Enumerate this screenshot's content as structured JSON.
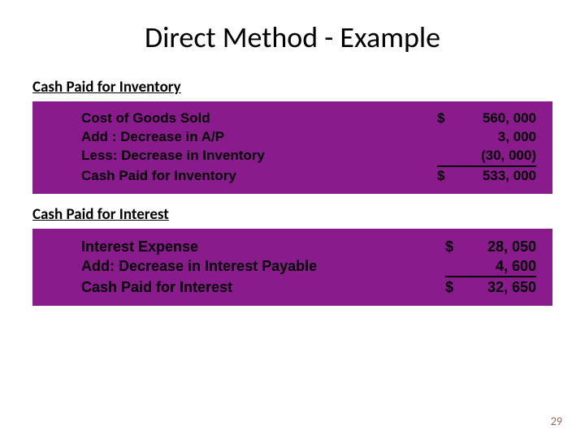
{
  "title": "Direct Method - Example",
  "sections": [
    {
      "label": "Cash Paid for Inventory",
      "panel_bg": "#8a1b8d",
      "font_size": 17,
      "underline_width": 122,
      "rows": [
        {
          "label": "Cost of Goods Sold",
          "cur": "$",
          "val": "560, 000"
        },
        {
          "label": "Add :  Decrease in A/P",
          "cur": "",
          "val": "3, 000"
        },
        {
          "label": "Less:  Decrease in Inventory",
          "cur": "",
          "val": "(30, 000)"
        },
        {
          "label": "Cash Paid for Inventory",
          "cur": "$",
          "val": "533, 000",
          "total": true
        }
      ]
    },
    {
      "label": "Cash Paid for Interest",
      "panel_bg": "#8a1b8d",
      "font_size": 18,
      "underline_width": 112,
      "rows": [
        {
          "label": "Interest Expense",
          "cur": "$",
          "val": "28, 050"
        },
        {
          "label": "Add:  Decrease in Interest Payable",
          "cur": "",
          "val": "4, 600"
        },
        {
          "label": "Cash Paid for Interest",
          "cur": "$",
          "val": "32, 650",
          "total": true
        }
      ]
    }
  ],
  "page_number": "29",
  "colors": {
    "text": "#000000",
    "background": "#ffffff",
    "page_num": "#8b6a5a"
  }
}
